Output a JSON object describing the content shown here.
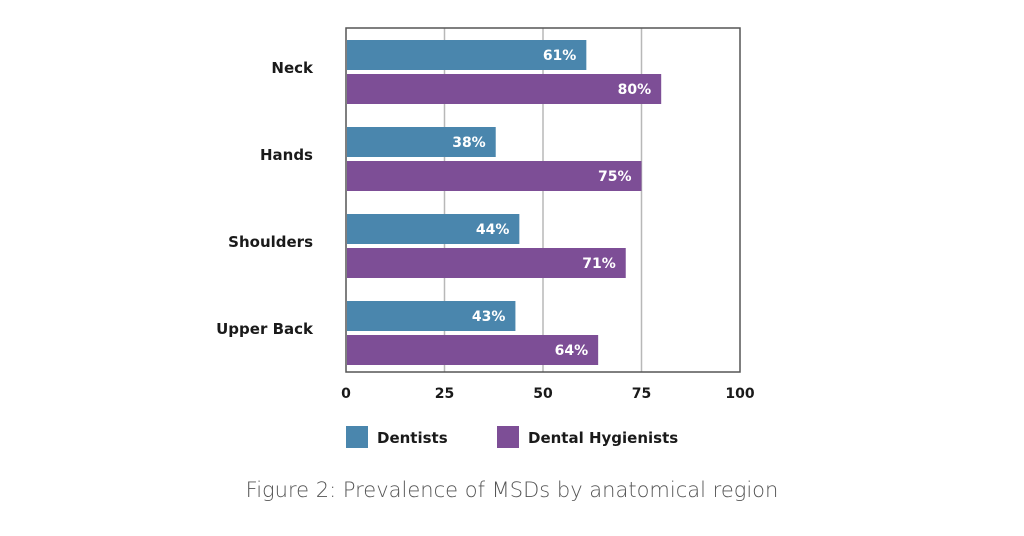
{
  "caption": "Figure 2: Prevalence of MSDs by anatomical region",
  "colors": {
    "dentists": "#4a86ad",
    "hygienists": "#7d4e96",
    "grid": "#b8b8b8",
    "frame": "#555555"
  },
  "chart_data": {
    "type": "bar",
    "orientation": "horizontal",
    "categories": [
      "Neck",
      "Hands",
      "Shoulders",
      "Upper Back"
    ],
    "series": [
      {
        "name": "Dentists",
        "values": [
          61,
          38,
          44,
          43
        ],
        "labels": [
          "61%",
          "38%",
          "44%",
          "43%"
        ]
      },
      {
        "name": "Dental Hygienists",
        "values": [
          80,
          75,
          71,
          64
        ],
        "labels": [
          "80%",
          "75%",
          "71%",
          "64%"
        ]
      }
    ],
    "xlim": [
      0,
      100
    ],
    "xticks": [
      "0",
      "25",
      "50",
      "75",
      "100"
    ],
    "grid": true,
    "legend_position": "bottom"
  }
}
